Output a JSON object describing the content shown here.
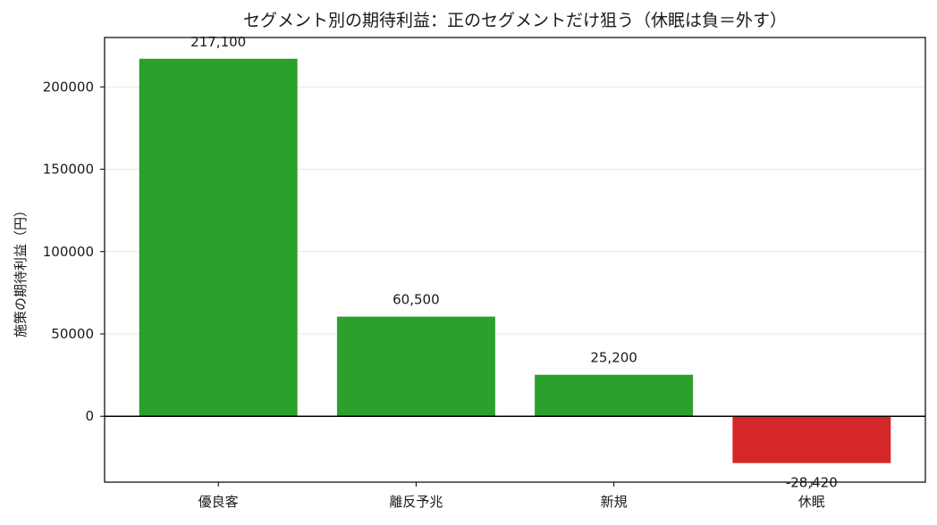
{
  "chart_data": {
    "type": "bar",
    "title": "セグメント別の期待利益：正のセグメントだけ狙う（休眠は負＝外す）",
    "xlabel": "",
    "ylabel": "施策の期待利益（円）",
    "categories": [
      "優良客",
      "離反予兆",
      "新規",
      "休眠"
    ],
    "values": [
      217100,
      60500,
      25200,
      -28420
    ],
    "data_labels": [
      "217,100",
      "60,500",
      "25,200",
      "-28,420"
    ],
    "ylim": [
      -40000,
      230000
    ],
    "yticks": [
      0,
      50000,
      100000,
      150000,
      200000
    ],
    "ytick_labels": [
      "0",
      "50000",
      "100000",
      "150000",
      "200000"
    ],
    "grid": "y-axis horizontal",
    "legend": "none",
    "colors": {
      "positive": "#2ca02c",
      "negative": "#d62728",
      "zero_line": "#000000"
    }
  }
}
